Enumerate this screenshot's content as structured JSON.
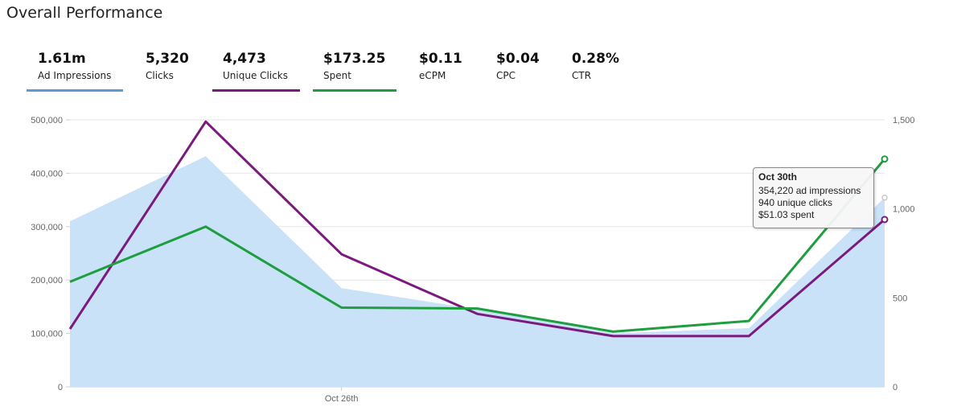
{
  "page": {
    "title": "Overall Performance"
  },
  "metrics": [
    {
      "value": "1.61m",
      "label": "Ad Impressions",
      "underline_color": "#5b9bd5"
    },
    {
      "value": "5,320",
      "label": "Clicks",
      "underline_color": ""
    },
    {
      "value": "4,473",
      "label": "Unique Clicks",
      "underline_color": "#7b1a7e"
    },
    {
      "value": "$173.25",
      "label": "Spent",
      "underline_color": "#1e9e3e"
    },
    {
      "value": "$0.11",
      "label": "eCPM",
      "underline_color": ""
    },
    {
      "value": "$0.04",
      "label": "CPC",
      "underline_color": ""
    },
    {
      "value": "0.28%",
      "label": "CTR",
      "underline_color": ""
    }
  ],
  "tooltip": {
    "title": "Oct 30th",
    "lines": [
      "354,220 ad impressions",
      "940 unique clicks",
      "$51.03 spent"
    ]
  },
  "chart_data": {
    "type": "line",
    "x_tick_labels": [
      "Oct 26th"
    ],
    "left_axis": {
      "ylim": [
        0,
        500000
      ],
      "ticks": [
        "0",
        "100,000",
        "200,000",
        "300,000",
        "400,000",
        "500,000"
      ]
    },
    "right_axis": {
      "ylim": [
        0,
        1500
      ],
      "ticks": [
        "0",
        "500",
        "1,000",
        "1,500"
      ]
    },
    "grid": true,
    "series": [
      {
        "name": "Ad Impressions",
        "type": "area",
        "axis": "left",
        "color": "#c9e2f8",
        "values": [
          310000,
          432000,
          185000,
          145000,
          100000,
          110000,
          354220
        ]
      },
      {
        "name": "Unique Clicks",
        "type": "line",
        "axis": "right",
        "color": "#7b1a7e",
        "values": [
          325,
          1490,
          745,
          410,
          285,
          285,
          940
        ]
      },
      {
        "name": "Spent",
        "type": "line",
        "axis": "right",
        "color": "#1e9e3e",
        "values": [
          590,
          900,
          445,
          440,
          310,
          370,
          1280
        ]
      }
    ]
  }
}
